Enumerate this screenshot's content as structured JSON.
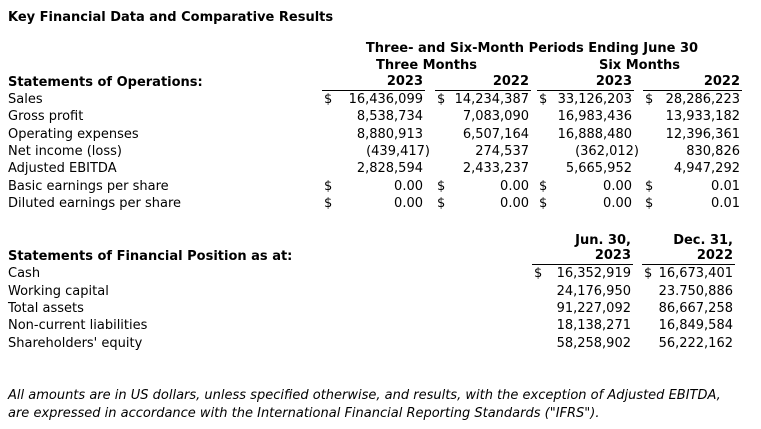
{
  "title": "Key Financial Data and Comparative Results",
  "operations": {
    "period_header": "Three- and Six-Month Periods Ending June 30",
    "group_headers": {
      "three": "Three Months",
      "six": "Six Months"
    },
    "section_label": "Statements of Operations:",
    "col_years": [
      "2023",
      "2022",
      "2023",
      "2022"
    ],
    "rows": [
      {
        "label": "Sales",
        "cur": "$",
        "values": [
          "16,436,099",
          "14,234,387",
          "33,126,203",
          "28,286,223"
        ]
      },
      {
        "label": "Gross profit",
        "values": [
          "8,538,734",
          "7,083,090",
          "16,983,436",
          "13,933,182"
        ]
      },
      {
        "label": "Operating expenses",
        "values": [
          "8,880,913",
          "6,507,164",
          "16,888,480",
          "12,396,361"
        ]
      },
      {
        "label": "Net income (loss)",
        "values": [
          "(439,417)",
          "274,537",
          "(362,012)",
          "830,826"
        ]
      },
      {
        "label": "Adjusted EBITDA",
        "values": [
          "2,828,594",
          "2,433,237",
          "5,665,952",
          "4,947,292"
        ]
      },
      {
        "label": "Basic earnings per share",
        "cur": "$",
        "values": [
          "0.00",
          "0.00",
          "0.00",
          "0.01"
        ]
      },
      {
        "label": "Diluted earnings per share",
        "cur": "$",
        "values": [
          "0.00",
          "0.00",
          "0.00",
          "0.01"
        ]
      }
    ]
  },
  "financial_position": {
    "section_label": "Statements of Financial Position as at:",
    "col_headers": [
      {
        "line1": "Jun. 30,",
        "line2": "2023"
      },
      {
        "line1": "Dec. 31,",
        "line2": "2022"
      }
    ],
    "rows": [
      {
        "label": "Cash",
        "cur": "$",
        "values": [
          "16,352,919",
          "16,673,401"
        ]
      },
      {
        "label": "Working capital",
        "values": [
          "24,176,950",
          "23.750,886"
        ]
      },
      {
        "label": "Total assets",
        "values": [
          "91,227,092",
          "86,667,258"
        ]
      },
      {
        "label": "Non-current liabilities",
        "values": [
          "18,138,271",
          "16,849,584"
        ]
      },
      {
        "label": "Shareholders' equity",
        "values": [
          "58,258,902",
          "56,222,162"
        ]
      }
    ]
  },
  "footnote": {
    "line1": "All amounts are in US dollars, unless specified otherwise, and results, with the exception of Adjusted EBITDA,",
    "line2": "are expressed in accordance with the International Financial Reporting Standards (\"IFRS\")."
  },
  "colors": {
    "text": "#000000",
    "background": "#ffffff",
    "rule": "#000000"
  }
}
